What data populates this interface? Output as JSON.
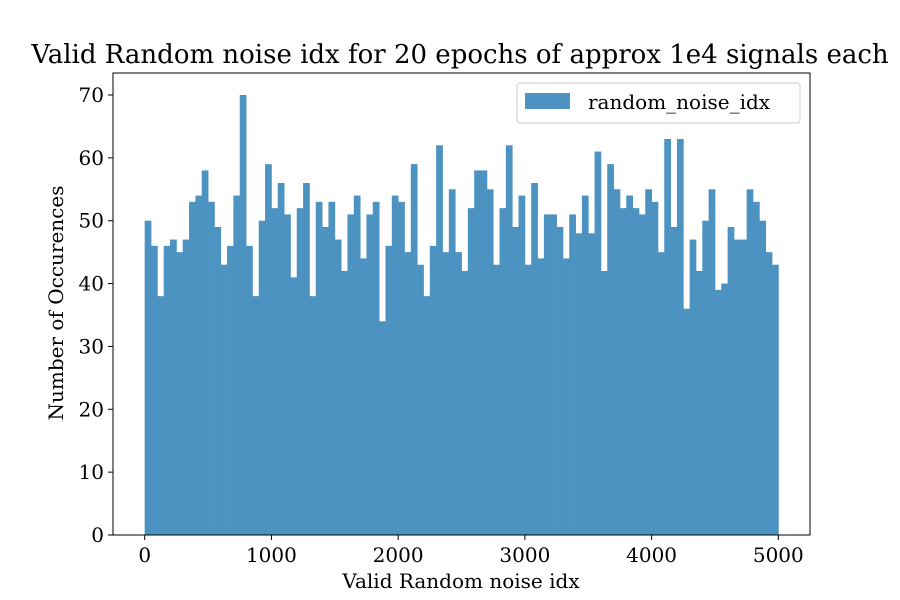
{
  "chart_data": {
    "type": "bar",
    "title": "Valid Random noise idx for 20 epochs of approx 1e4 signals each",
    "xlabel": "Valid Random noise idx",
    "ylabel": "Number of Occurences",
    "xlim": [
      -250,
      5250
    ],
    "ylim": [
      0,
      73.5
    ],
    "bin_start": 0,
    "bin_width": 50,
    "xticks": [
      0,
      1000,
      2000,
      3000,
      4000,
      5000
    ],
    "xtick_labels": [
      "0",
      "1000",
      "2000",
      "3000",
      "4000",
      "5000"
    ],
    "yticks": [
      0,
      10,
      20,
      30,
      40,
      50,
      60,
      70
    ],
    "ytick_labels": [
      "0",
      "10",
      "20",
      "30",
      "40",
      "50",
      "60",
      "70"
    ],
    "grid": false,
    "legend_position": "top-right",
    "bar_color": "#4c93c2",
    "series": [
      {
        "name": "random_noise_idx",
        "values": [
          50,
          46,
          38,
          46,
          47,
          45,
          47,
          53,
          54,
          58,
          53,
          49,
          43,
          46,
          54,
          70,
          46,
          38,
          50,
          59,
          52,
          56,
          51,
          41,
          52,
          56,
          38,
          53,
          49,
          53,
          47,
          42,
          51,
          54,
          44,
          51,
          53,
          34,
          46,
          54,
          53,
          45,
          59,
          43,
          38,
          46,
          62,
          45,
          55,
          45,
          42,
          52,
          58,
          58,
          55,
          43,
          52,
          62,
          49,
          54,
          43,
          56,
          44,
          51,
          51,
          49,
          44,
          51,
          48,
          54,
          48,
          61,
          42,
          59,
          55,
          52,
          54,
          52,
          51,
          55,
          53,
          45,
          63,
          49,
          63,
          36,
          47,
          42,
          50,
          55,
          39,
          40,
          49,
          47,
          47,
          55,
          53,
          50,
          45,
          43
        ]
      }
    ]
  }
}
